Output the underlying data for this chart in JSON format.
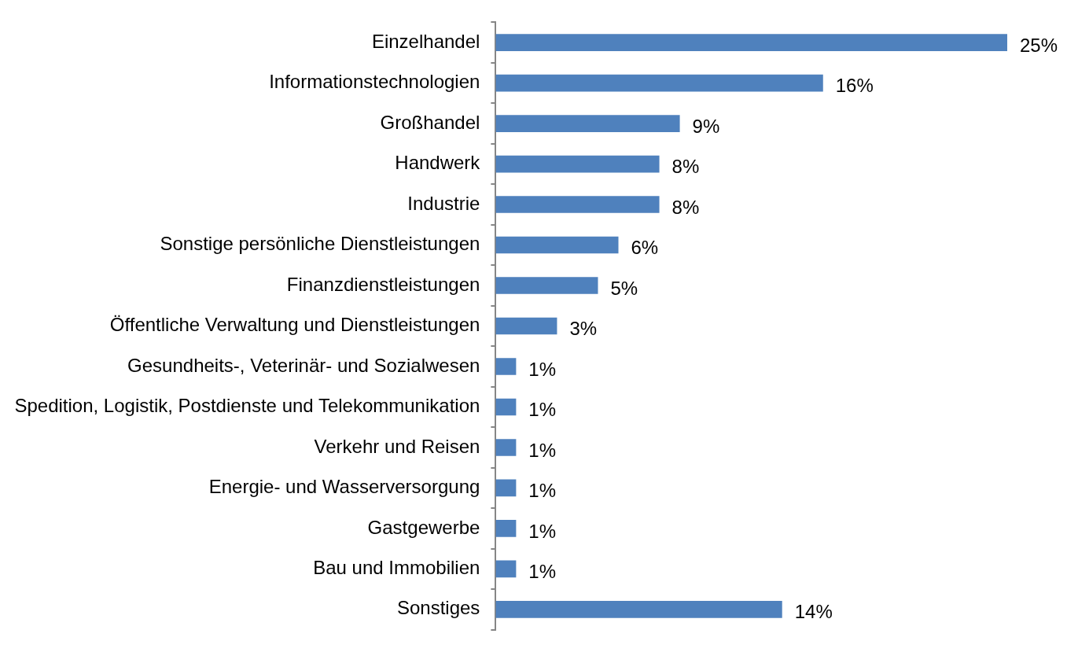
{
  "chart_data": {
    "type": "bar",
    "orientation": "horizontal",
    "categories": [
      "Einzelhandel",
      "Informationstechnologien",
      "Großhandel",
      "Handwerk",
      "Industrie",
      "Sonstige persönliche Dienstleistungen",
      "Finanzdienstleistungen",
      "Öffentliche Verwaltung und Dienstleistungen",
      "Gesundheits-, Veterinär- und Sozialwesen",
      "Spedition, Logistik, Postdienste und Telekommunikation",
      "Verkehr und Reisen",
      "Energie- und Wasserversorgung",
      "Gastgewerbe",
      "Bau und Immobilien",
      "Sonstiges"
    ],
    "values": [
      25,
      16,
      9,
      8,
      8,
      6,
      5,
      3,
      1,
      1,
      1,
      1,
      1,
      1,
      14
    ],
    "value_labels": [
      "25%",
      "16%",
      "9%",
      "8%",
      "8%",
      "6%",
      "5%",
      "3%",
      "1%",
      "1%",
      "1%",
      "1%",
      "1%",
      "1%",
      "14%"
    ],
    "color": "#4f81bd",
    "legend": false
  }
}
